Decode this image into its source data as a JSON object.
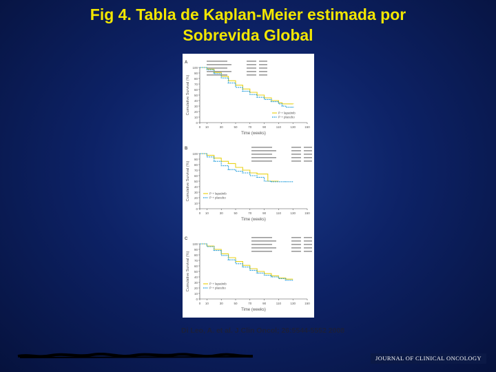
{
  "title": {
    "line1": "Fig 4. Tabla de  Kaplan-Meier estimada por",
    "line2": "Sobrevida Global"
  },
  "citation": "Di Leo, A. et al. J Clin Oncol; 26:5544-5552 2008",
  "journal": "JOURNAL OF CLINICAL ONCOLOGY",
  "colors": {
    "lapatinib": "#e8d21a",
    "placebo": "#2aa0dc",
    "title": "#f2e600"
  },
  "chart_data": [
    {
      "type": "line",
      "panel": "A",
      "xlabel": "Time (weeks)",
      "ylabel": "Cumulative Survival (%)",
      "xlim": [
        0,
        150
      ],
      "ylim": [
        0,
        100
      ],
      "x_ticks": [
        0,
        10,
        30,
        50,
        70,
        90,
        110,
        130,
        150
      ],
      "y_ticks": [
        0,
        10,
        20,
        30,
        40,
        50,
        60,
        70,
        80,
        90,
        100
      ],
      "legend": [
        "P + lapatinib",
        "P + placebo"
      ],
      "series": [
        {
          "name": "P + lapatinib",
          "color": "#e8d21a",
          "x": [
            0,
            10,
            20,
            30,
            40,
            50,
            60,
            70,
            80,
            90,
            100,
            110,
            115,
            120,
            130
          ],
          "y": [
            100,
            97,
            91,
            84,
            76,
            68,
            61,
            55,
            50,
            45,
            40,
            36,
            34,
            34,
            34
          ]
        },
        {
          "name": "P + placebo",
          "color": "#2aa0dc",
          "x": [
            0,
            10,
            20,
            30,
            40,
            50,
            60,
            70,
            80,
            90,
            100,
            110,
            115,
            120,
            130
          ],
          "y": [
            100,
            96,
            89,
            81,
            72,
            64,
            57,
            51,
            46,
            42,
            38,
            34,
            30,
            28,
            28
          ]
        }
      ]
    },
    {
      "type": "line",
      "panel": "B",
      "xlabel": "Time (weeks)",
      "ylabel": "Cumulative Survival (%)",
      "xlim": [
        0,
        150
      ],
      "ylim": [
        0,
        100
      ],
      "x_ticks": [
        0,
        10,
        30,
        50,
        70,
        90,
        110,
        130,
        150
      ],
      "y_ticks": [
        0,
        10,
        20,
        30,
        40,
        50,
        60,
        70,
        80,
        90,
        100
      ],
      "legend": [
        "P + lapatinib",
        "P + placebo"
      ],
      "series": [
        {
          "name": "P + lapatinib",
          "color": "#e8d21a",
          "x": [
            0,
            10,
            20,
            30,
            40,
            50,
            60,
            70,
            80,
            90,
            95,
            100,
            105,
            110
          ],
          "y": [
            100,
            97,
            92,
            86,
            82,
            75,
            70,
            65,
            63,
            63,
            50,
            50,
            50,
            50
          ]
        },
        {
          "name": "P + placebo",
          "color": "#2aa0dc",
          "x": [
            0,
            10,
            20,
            30,
            40,
            50,
            60,
            70,
            80,
            90,
            100,
            110,
            120,
            130
          ],
          "y": [
            100,
            94,
            86,
            78,
            71,
            68,
            65,
            60,
            57,
            50,
            49,
            49,
            49,
            49
          ]
        }
      ]
    },
    {
      "type": "line",
      "panel": "C",
      "xlabel": "Time (weeks)",
      "ylabel": "Cumulative Survival (%)",
      "xlim": [
        0,
        150
      ],
      "ylim": [
        0,
        100
      ],
      "x_ticks": [
        0,
        10,
        30,
        50,
        70,
        90,
        110,
        130,
        150
      ],
      "y_ticks": [
        0,
        10,
        20,
        30,
        40,
        50,
        60,
        70,
        80,
        90,
        100
      ],
      "legend": [
        "P + lapatinib",
        "P + placebo"
      ],
      "series": [
        {
          "name": "P + lapatinib",
          "color": "#e8d21a",
          "x": [
            0,
            10,
            20,
            30,
            40,
            50,
            60,
            70,
            80,
            90,
            100,
            110,
            120,
            130
          ],
          "y": [
            100,
            96,
            90,
            82,
            75,
            68,
            61,
            55,
            50,
            46,
            42,
            38,
            36,
            36
          ]
        },
        {
          "name": "P + placebo",
          "color": "#2aa0dc",
          "x": [
            0,
            10,
            20,
            30,
            40,
            50,
            60,
            70,
            80,
            90,
            100,
            110,
            120,
            130
          ],
          "y": [
            100,
            95,
            88,
            79,
            71,
            64,
            58,
            52,
            47,
            43,
            40,
            37,
            34,
            34
          ]
        }
      ]
    }
  ]
}
